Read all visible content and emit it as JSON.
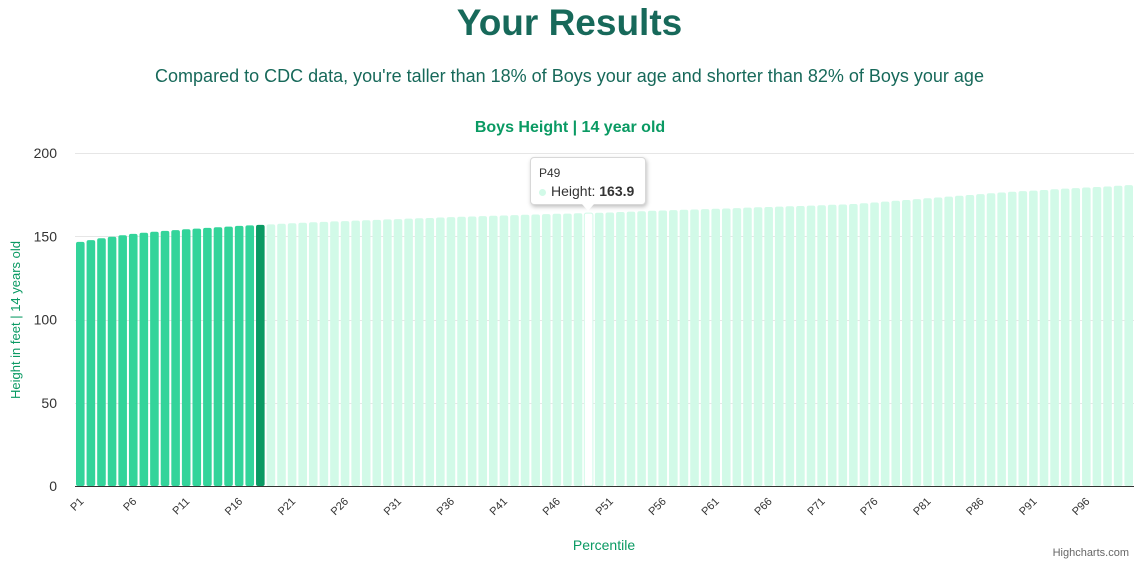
{
  "header": {
    "title": "Your Results",
    "summary": "Compared to CDC data, you're taller than 18% of Boys your age and shorter than 82% of Boys your age"
  },
  "colors": {
    "title": "#17695a",
    "chart_title": "#0a9a63",
    "below": "#33d49a",
    "current": "#0a9a63",
    "above": "#d2fae8",
    "axis_label": "#0a9a63"
  },
  "tooltip": {
    "category": "P49",
    "label": "Height: ",
    "value": "163.9"
  },
  "credits": "Highcharts.com",
  "chart_data": {
    "type": "bar",
    "title": "Boys Height | 14 year old",
    "xlabel": "Percentile",
    "ylabel": "Height in feet | 14 years old",
    "ylim": [
      0,
      200
    ],
    "yticks": [
      0,
      50,
      100,
      150,
      200
    ],
    "grid": true,
    "highlight_index": 17,
    "hover_index": 48,
    "categories": [
      "P1",
      "P2",
      "P3",
      "P4",
      "P5",
      "P6",
      "P7",
      "P8",
      "P9",
      "P10",
      "P11",
      "P12",
      "P13",
      "P14",
      "P15",
      "P16",
      "P17",
      "P18",
      "P19",
      "P20",
      "P21",
      "P22",
      "P23",
      "P24",
      "P25",
      "P26",
      "P27",
      "P28",
      "P29",
      "P30",
      "P31",
      "P32",
      "P33",
      "P34",
      "P35",
      "P36",
      "P37",
      "P38",
      "P39",
      "P40",
      "P41",
      "P42",
      "P43",
      "P44",
      "P45",
      "P46",
      "P47",
      "P48",
      "P49",
      "P50",
      "P51",
      "P52",
      "P53",
      "P54",
      "P55",
      "P56",
      "P57",
      "P58",
      "P59",
      "P60",
      "P61",
      "P62",
      "P63",
      "P64",
      "P65",
      "P66",
      "P67",
      "P68",
      "P69",
      "P70",
      "P71",
      "P72",
      "P73",
      "P74",
      "P75",
      "P76",
      "P77",
      "P78",
      "P79",
      "P80",
      "P81",
      "P82",
      "P83",
      "P84",
      "P85",
      "P86",
      "P87",
      "P88",
      "P89",
      "P90",
      "P91",
      "P92",
      "P93",
      "P94",
      "P95",
      "P96",
      "P97",
      "P98",
      "P99",
      "P100"
    ],
    "tick_labels": [
      "P1",
      "P6",
      "P11",
      "P16",
      "P21",
      "P26",
      "P31",
      "P36",
      "P41",
      "P46",
      "P51",
      "P56",
      "P61",
      "P66",
      "P71",
      "P76",
      "P81",
      "P86",
      "P91",
      "P96"
    ],
    "series": [
      {
        "values": [
          146.6,
          147.7,
          148.8,
          149.7,
          150.6,
          151.4,
          152.1,
          152.7,
          153.2,
          153.7,
          154.2,
          154.6,
          155.0,
          155.4,
          155.8,
          156.2,
          156.5,
          156.8,
          157.1,
          157.5,
          157.8,
          158.1,
          158.4,
          158.6,
          158.9,
          159.1,
          159.4,
          159.6,
          159.8,
          160.1,
          160.3,
          160.6,
          160.8,
          161.0,
          161.3,
          161.5,
          161.7,
          161.9,
          162.1,
          162.3,
          162.5,
          162.7,
          162.9,
          163.1,
          163.3,
          163.5,
          163.6,
          163.8,
          163.9,
          164.1,
          164.3,
          164.6,
          164.8,
          165.0,
          165.3,
          165.5,
          165.7,
          165.9,
          166.1,
          166.3,
          166.5,
          166.7,
          166.9,
          167.2,
          167.4,
          167.6,
          167.8,
          168.0,
          168.2,
          168.4,
          168.6,
          168.9,
          169.1,
          169.4,
          169.8,
          170.3,
          170.8,
          171.3,
          171.8,
          172.3,
          172.8,
          173.3,
          173.8,
          174.3,
          174.8,
          175.3,
          175.8,
          176.3,
          176.7,
          177.1,
          177.4,
          177.8,
          178.2,
          178.6,
          178.9,
          179.3,
          179.6,
          179.9,
          180.3,
          180.7
        ]
      }
    ]
  }
}
